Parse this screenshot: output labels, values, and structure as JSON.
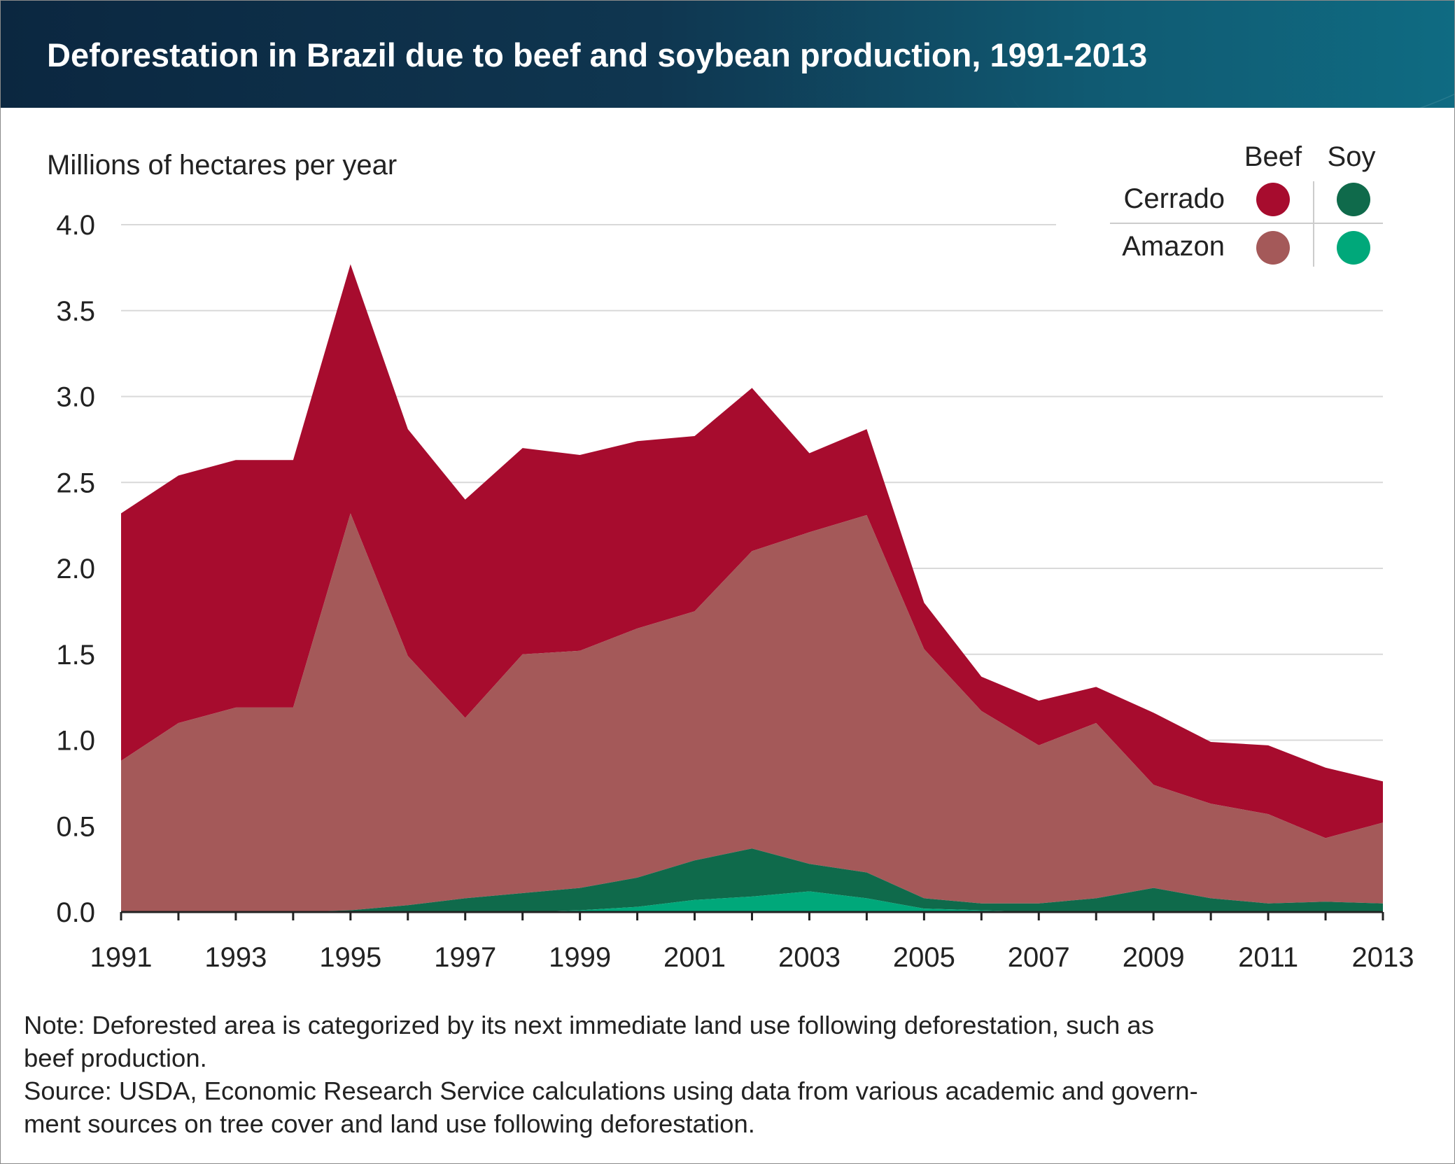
{
  "header": {
    "title": "Deforestation in Brazil due to beef and soybean production, 1991-2013"
  },
  "legend": {
    "col_beef": "Beef",
    "col_soy": "Soy",
    "row_cerrado": "Cerrado",
    "row_amazon": "Amazon"
  },
  "notes": {
    "line1": "Note: Deforested area is categorized by its next immediate land use following deforestation, such as",
    "line2": "beef production.",
    "line3": "Source: USDA, Economic Research Service calculations using data from various academic and govern-",
    "line4": "ment sources on tree cover and land use following deforestation."
  },
  "colors": {
    "cerrado_beef": "#a70c2e",
    "amazon_beef": "#a45959",
    "cerrado_soy": "#0f6a4b",
    "amazon_soy": "#00a87a",
    "gridline": "#d9d9d9",
    "axis": "#222222"
  },
  "chart_data": {
    "type": "area",
    "stacked": true,
    "ylabel": "Millions of hectares per year",
    "ylim": [
      0,
      4.0
    ],
    "y_ticks": [
      "0.0",
      "0.5",
      "1.0",
      "1.5",
      "2.0",
      "2.5",
      "3.0",
      "3.5",
      "4.0"
    ],
    "x": [
      1991,
      1992,
      1993,
      1994,
      1995,
      1996,
      1997,
      1998,
      1999,
      2000,
      2001,
      2002,
      2003,
      2004,
      2005,
      2006,
      2007,
      2008,
      2009,
      2010,
      2011,
      2012,
      2013
    ],
    "x_tick_labels": [
      "1991",
      "1993",
      "1995",
      "1997",
      "1999",
      "2001",
      "2003",
      "2005",
      "2007",
      "2009",
      "2011",
      "2013"
    ],
    "grid": true,
    "legend_position": "top-right",
    "series": [
      {
        "name": "Amazon Soy",
        "color_key": "amazon_soy",
        "values": [
          0,
          0,
          0,
          0,
          0,
          0,
          0,
          0,
          0.01,
          0.03,
          0.07,
          0.09,
          0.12,
          0.08,
          0.02,
          0.01,
          0,
          0,
          0,
          0,
          0,
          0,
          0
        ]
      },
      {
        "name": "Cerrado Soy",
        "color_key": "cerrado_soy",
        "values": [
          0,
          0,
          0,
          0,
          0.01,
          0.04,
          0.08,
          0.11,
          0.13,
          0.17,
          0.23,
          0.28,
          0.16,
          0.15,
          0.06,
          0.04,
          0.05,
          0.08,
          0.14,
          0.08,
          0.05,
          0.06,
          0.05
        ]
      },
      {
        "name": "Amazon Beef",
        "color_key": "amazon_beef",
        "values": [
          0.88,
          1.1,
          1.19,
          1.19,
          2.31,
          1.45,
          1.05,
          1.39,
          1.38,
          1.45,
          1.45,
          1.73,
          1.93,
          2.08,
          1.45,
          1.12,
          0.92,
          1.02,
          0.6,
          0.55,
          0.52,
          0.37,
          0.47
        ]
      },
      {
        "name": "Cerrado Beef",
        "color_key": "cerrado_beef",
        "values": [
          1.44,
          1.44,
          1.44,
          1.44,
          1.45,
          1.32,
          1.27,
          1.2,
          1.14,
          1.09,
          1.02,
          0.95,
          0.46,
          0.5,
          0.27,
          0.2,
          0.26,
          0.21,
          0.42,
          0.36,
          0.4,
          0.41,
          0.24
        ]
      }
    ]
  }
}
